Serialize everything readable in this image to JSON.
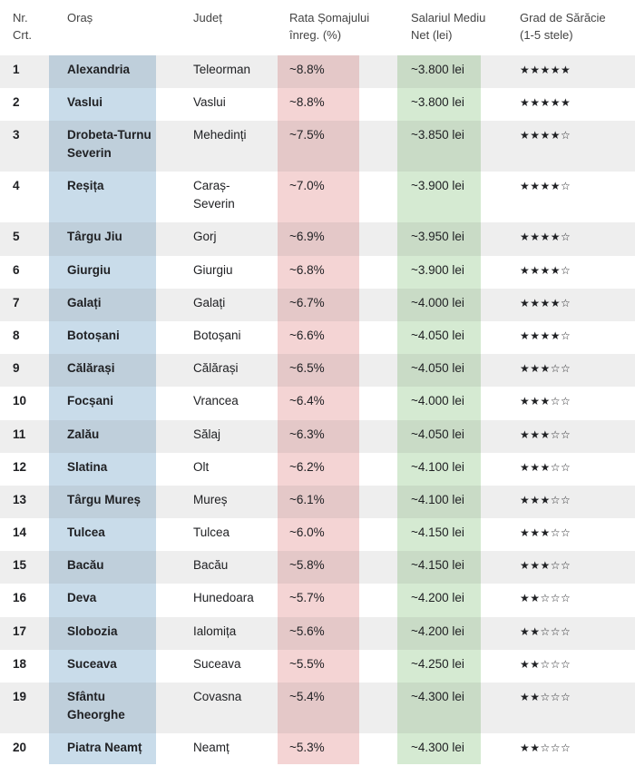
{
  "headers": {
    "nr": [
      "Nr.",
      "Crt."
    ],
    "city": [
      "Oraș"
    ],
    "county": [
      "Județ"
    ],
    "rate": [
      "Rata Șomajului",
      "înreg. (%)"
    ],
    "salary": [
      "Salariul Mediu",
      "Net (lei)"
    ],
    "poverty": [
      "Grad de Sărăcie",
      "(1-5 stele)"
    ]
  },
  "rows": [
    {
      "nr": "1",
      "city": [
        "Alexandria"
      ],
      "county": [
        "Teleorman"
      ],
      "rate": "~8.8%",
      "salary": "~3.800 lei",
      "stars": "★★★★★"
    },
    {
      "nr": "2",
      "city": [
        "Vaslui"
      ],
      "county": [
        "Vaslui"
      ],
      "rate": "~8.8%",
      "salary": "~3.800 lei",
      "stars": "★★★★★"
    },
    {
      "nr": "3",
      "city": [
        "Drobeta-Turnu",
        "Severin"
      ],
      "county": [
        "Mehedinți"
      ],
      "rate": "~7.5%",
      "salary": "~3.850 lei",
      "stars": "★★★★☆"
    },
    {
      "nr": "4",
      "city": [
        "Reșița"
      ],
      "county": [
        "Caraș-",
        "Severin"
      ],
      "rate": "~7.0%",
      "salary": "~3.900 lei",
      "stars": "★★★★☆"
    },
    {
      "nr": "5",
      "city": [
        "Târgu Jiu"
      ],
      "county": [
        "Gorj"
      ],
      "rate": "~6.9%",
      "salary": "~3.950 lei",
      "stars": "★★★★☆"
    },
    {
      "nr": "6",
      "city": [
        "Giurgiu"
      ],
      "county": [
        "Giurgiu"
      ],
      "rate": "~6.8%",
      "salary": "~3.900 lei",
      "stars": "★★★★☆"
    },
    {
      "nr": "7",
      "city": [
        "Galați"
      ],
      "county": [
        "Galați"
      ],
      "rate": "~6.7%",
      "salary": "~4.000 lei",
      "stars": "★★★★☆"
    },
    {
      "nr": "8",
      "city": [
        "Botoșani"
      ],
      "county": [
        "Botoșani"
      ],
      "rate": "~6.6%",
      "salary": "~4.050 lei",
      "stars": "★★★★☆"
    },
    {
      "nr": "9",
      "city": [
        "Călărași"
      ],
      "county": [
        "Călărași"
      ],
      "rate": "~6.5%",
      "salary": "~4.050 lei",
      "stars": "★★★☆☆"
    },
    {
      "nr": "10",
      "city": [
        "Focșani"
      ],
      "county": [
        "Vrancea"
      ],
      "rate": "~6.4%",
      "salary": "~4.000 lei",
      "stars": "★★★☆☆"
    },
    {
      "nr": "11",
      "city": [
        "Zalău"
      ],
      "county": [
        "Sălaj"
      ],
      "rate": "~6.3%",
      "salary": "~4.050 lei",
      "stars": "★★★☆☆"
    },
    {
      "nr": "12",
      "city": [
        "Slatina"
      ],
      "county": [
        "Olt"
      ],
      "rate": "~6.2%",
      "salary": "~4.100 lei",
      "stars": "★★★☆☆"
    },
    {
      "nr": "13",
      "city": [
        "Târgu Mureș"
      ],
      "county": [
        "Mureș"
      ],
      "rate": "~6.1%",
      "salary": "~4.100 lei",
      "stars": "★★★☆☆"
    },
    {
      "nr": "14",
      "city": [
        "Tulcea"
      ],
      "county": [
        "Tulcea"
      ],
      "rate": "~6.0%",
      "salary": "~4.150 lei",
      "stars": "★★★☆☆"
    },
    {
      "nr": "15",
      "city": [
        "Bacău"
      ],
      "county": [
        "Bacău"
      ],
      "rate": "~5.8%",
      "salary": "~4.150 lei",
      "stars": "★★★☆☆"
    },
    {
      "nr": "16",
      "city": [
        "Deva"
      ],
      "county": [
        "Hunedoara"
      ],
      "rate": "~5.7%",
      "salary": "~4.200 lei",
      "stars": "★★☆☆☆"
    },
    {
      "nr": "17",
      "city": [
        "Slobozia"
      ],
      "county": [
        "Ialomița"
      ],
      "rate": "~5.6%",
      "salary": "~4.200 lei",
      "stars": "★★☆☆☆"
    },
    {
      "nr": "18",
      "city": [
        "Suceava"
      ],
      "county": [
        "Suceava"
      ],
      "rate": "~5.5%",
      "salary": "~4.250 lei",
      "stars": "★★☆☆☆"
    },
    {
      "nr": "19",
      "city": [
        "Sfântu",
        "Gheorghe"
      ],
      "county": [
        "Covasna"
      ],
      "rate": "~5.4%",
      "salary": "~4.300 lei",
      "stars": "★★☆☆☆"
    },
    {
      "nr": "20",
      "city": [
        "Piatra Neamț"
      ],
      "county": [
        "Neamț"
      ],
      "rate": "~5.3%",
      "salary": "~4.300 lei",
      "stars": "★★☆☆☆"
    }
  ]
}
